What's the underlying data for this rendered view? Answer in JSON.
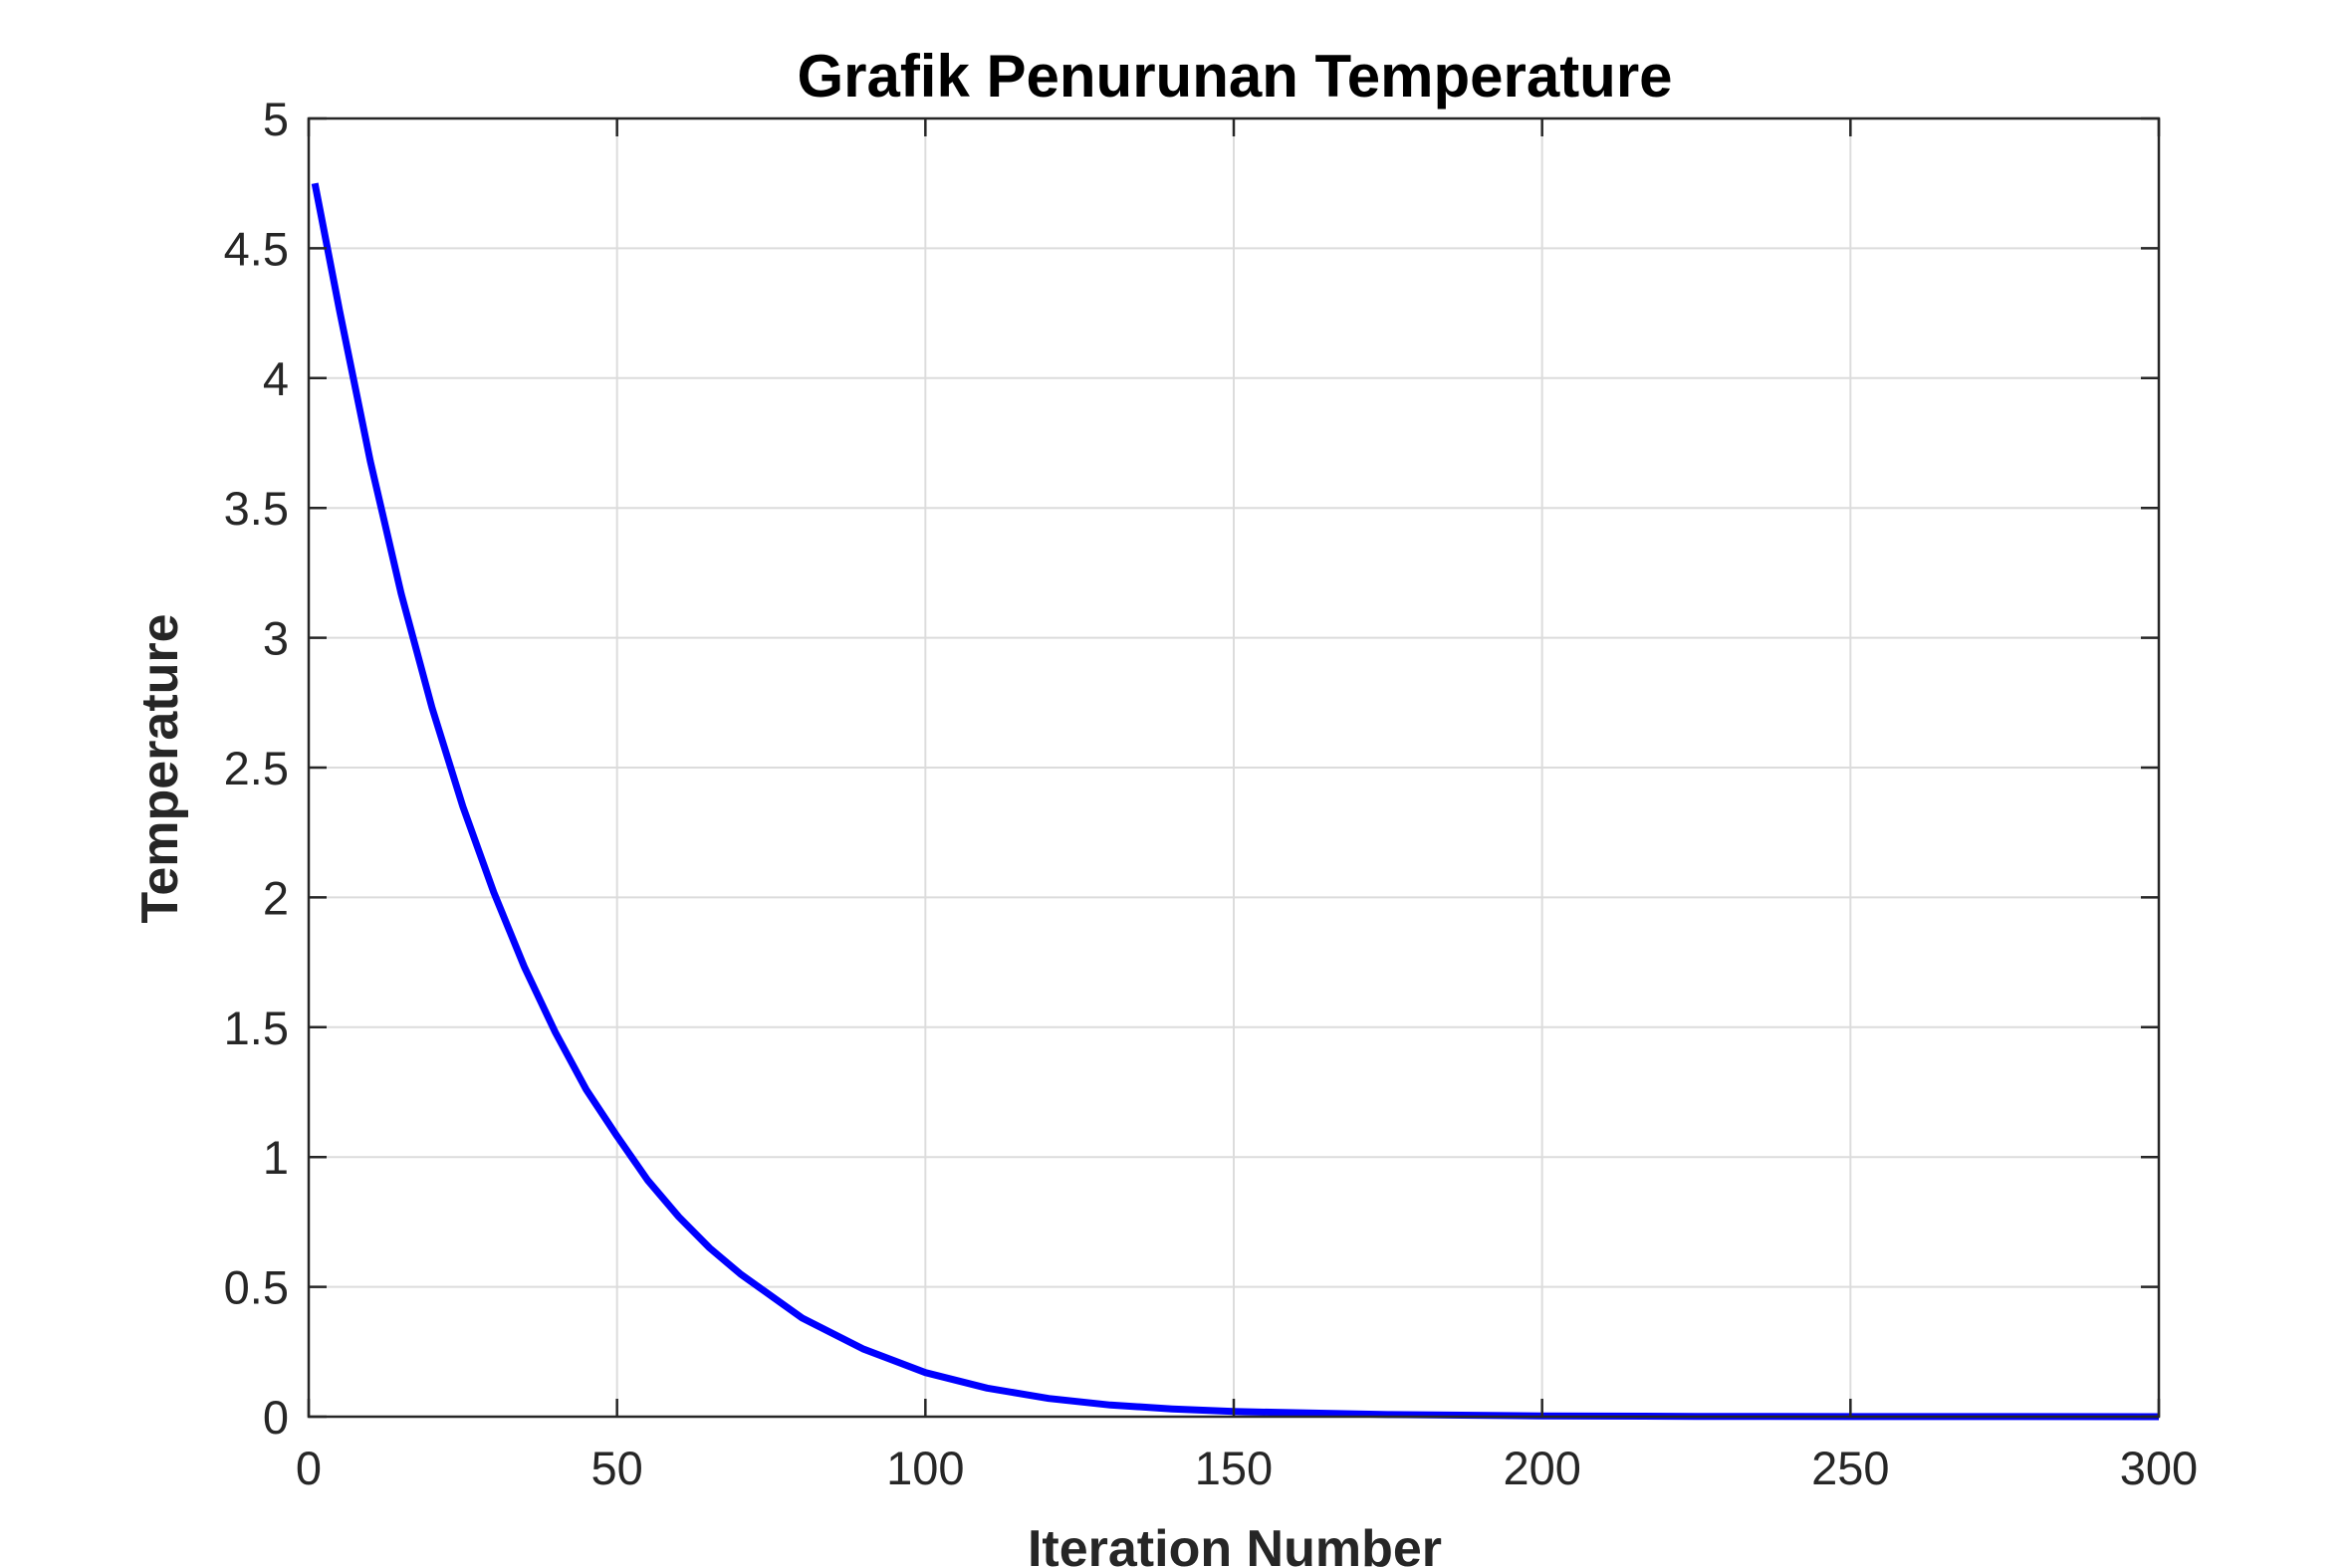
{
  "chart_data": {
    "type": "line",
    "title": "Grafik Penurunan Temperature",
    "xlabel": "Iteration Number",
    "ylabel": "Temperature",
    "xlim": [
      0,
      300
    ],
    "ylim": [
      0,
      5
    ],
    "xticks": [
      "0",
      "50",
      "100",
      "150",
      "200",
      "250",
      "300"
    ],
    "yticks": [
      "0",
      "0.5",
      "1",
      "1.5",
      "2",
      "2.5",
      "3",
      "3.5",
      "4",
      "4.5",
      "5"
    ],
    "grid": true,
    "series": [
      {
        "color": "#0000ff",
        "x": [
          1,
          5,
          10,
          15,
          20,
          25,
          30,
          35,
          40,
          45,
          50,
          55,
          60,
          65,
          70,
          80,
          90,
          100,
          110,
          120,
          130,
          140,
          150,
          175,
          200,
          225,
          250,
          275,
          300
        ],
        "y": [
          4.75,
          4.26,
          3.68,
          3.17,
          2.73,
          2.35,
          2.02,
          1.73,
          1.48,
          1.26,
          1.08,
          0.91,
          0.77,
          0.65,
          0.55,
          0.38,
          0.26,
          0.17,
          0.11,
          0.07,
          0.045,
          0.03,
          0.02,
          0.008,
          0.003,
          0.001,
          0.0005,
          0.0002,
          0.0001
        ]
      }
    ]
  },
  "colors": {
    "line": "#0000ff",
    "axis": "#262626",
    "grid": "#dcdcdc"
  }
}
